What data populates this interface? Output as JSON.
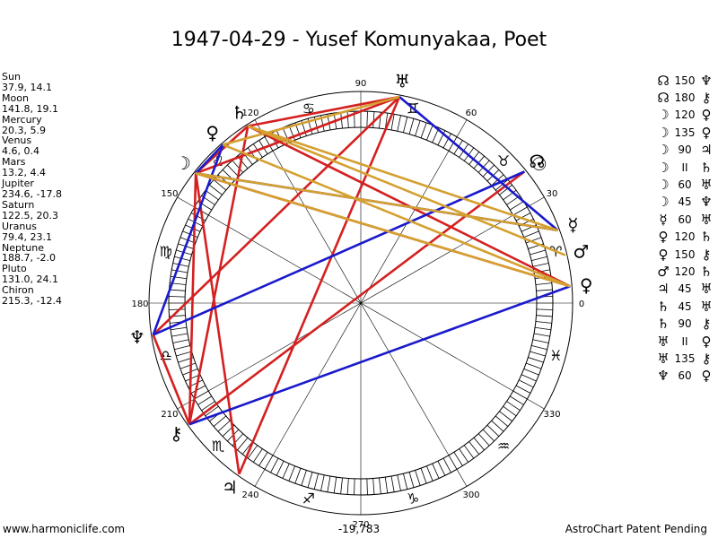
{
  "title": "1947-04-29 - Yusef Komunyakaa, Poet",
  "planets": [
    {
      "name": "Sun",
      "pos": "37.9, 14.1"
    },
    {
      "name": "Moon",
      "pos": "141.8, 19.1"
    },
    {
      "name": "Mercury",
      "pos": "20.3, 5.9"
    },
    {
      "name": "Venus",
      "pos": "4.6, 0.4"
    },
    {
      "name": "Mars",
      "pos": "13.2, 4.4"
    },
    {
      "name": "Jupiter",
      "pos": "234.6, -17.8"
    },
    {
      "name": "Saturn",
      "pos": "122.5, 20.3"
    },
    {
      "name": "Uranus",
      "pos": "79.4, 23.1"
    },
    {
      "name": "Neptune",
      "pos": "188.7, -2.0"
    },
    {
      "name": "Pluto",
      "pos": "131.0, 24.1"
    },
    {
      "name": "Chiron",
      "pos": "215.3, -12.4"
    }
  ],
  "aspects": [
    {
      "a": "☊",
      "deg": "150",
      "b": "♆"
    },
    {
      "a": "☊",
      "deg": "180",
      "b": "⚷"
    },
    {
      "a": "☽",
      "deg": "120",
      "b": "♀"
    },
    {
      "a": "☽",
      "deg": "135",
      "b": "♀"
    },
    {
      "a": "☽",
      "deg": "90",
      "b": "♃"
    },
    {
      "a": "☽",
      "deg": "II",
      "b": "♄"
    },
    {
      "a": "☽",
      "deg": "60",
      "b": "♅"
    },
    {
      "a": "☽",
      "deg": "45",
      "b": "♆"
    },
    {
      "a": "☿",
      "deg": "60",
      "b": "♅"
    },
    {
      "a": "♀",
      "deg": "120",
      "b": "♄"
    },
    {
      "a": "♀",
      "deg": "150",
      "b": "⚷"
    },
    {
      "a": "♂",
      "deg": "120",
      "b": "♄"
    },
    {
      "a": "♃",
      "deg": "45",
      "b": "♅"
    },
    {
      "a": "♄",
      "deg": "45",
      "b": "♅"
    },
    {
      "a": "♄",
      "deg": "90",
      "b": "⚷"
    },
    {
      "a": "♅",
      "deg": "II",
      "b": "♀"
    },
    {
      "a": "♅",
      "deg": "135",
      "b": "⚷"
    },
    {
      "a": "♆",
      "deg": "60",
      "b": "♀"
    }
  ],
  "chart": {
    "degree_labels": [
      "0",
      "30",
      "60",
      "90",
      "120",
      "150",
      "180",
      "210",
      "240",
      "270",
      "300",
      "330"
    ],
    "zodiac": [
      "♈",
      "♉",
      "♊",
      "♋",
      "♌",
      "♍",
      "♎",
      "♏",
      "♐",
      "♑",
      "♒",
      "♓"
    ],
    "bodies": [
      {
        "glyph": "☉",
        "lon": 37.9,
        "color": "#000000"
      },
      {
        "glyph": "☽",
        "lon": 141.8,
        "color": "#000000"
      },
      {
        "glyph": "☿",
        "lon": 20.3,
        "color": "#000000"
      },
      {
        "glyph": "♀",
        "lon": 4.6,
        "color": "#000000"
      },
      {
        "glyph": "♂",
        "lon": 13.2,
        "color": "#000000"
      },
      {
        "glyph": "♃",
        "lon": 234.6,
        "color": "#000000"
      },
      {
        "glyph": "♄",
        "lon": 122.5,
        "color": "#000000"
      },
      {
        "glyph": "♅",
        "lon": 79.4,
        "color": "#000000"
      },
      {
        "glyph": "♆",
        "lon": 188.7,
        "color": "#000000"
      },
      {
        "glyph": "♀",
        "lon": 131.0,
        "color": "#000000"
      },
      {
        "glyph": "⚷",
        "lon": 215.3,
        "color": "#000000"
      },
      {
        "glyph": "☊",
        "lon": 38.8,
        "color": "#000000"
      }
    ],
    "aspect_lines": [
      {
        "from": 141.8,
        "to": 79.4,
        "color": "#d42020"
      },
      {
        "from": 141.8,
        "to": 122.5,
        "color": "#d42020"
      },
      {
        "from": 141.8,
        "to": 234.6,
        "color": "#d42020"
      },
      {
        "from": 141.8,
        "to": 215.3,
        "color": "#d42020"
      },
      {
        "from": 141.8,
        "to": 4.6,
        "color": "#d42020"
      },
      {
        "from": 234.6,
        "to": 79.4,
        "color": "#d42020"
      },
      {
        "from": 122.5,
        "to": 4.6,
        "color": "#d42020"
      },
      {
        "from": 122.5,
        "to": 79.4,
        "color": "#d42020"
      },
      {
        "from": 215.3,
        "to": 38.8,
        "color": "#d42020"
      },
      {
        "from": 215.3,
        "to": 188.7,
        "color": "#d42020"
      },
      {
        "from": 188.7,
        "to": 79.4,
        "color": "#d42020"
      },
      {
        "from": 215.3,
        "to": 122.5,
        "color": "#d42020"
      },
      {
        "from": 141.8,
        "to": 20.3,
        "color": "#1a1acc"
      },
      {
        "from": 188.7,
        "to": 38.8,
        "color": "#1a1acc"
      },
      {
        "from": 215.3,
        "to": 4.6,
        "color": "#1a1acc"
      },
      {
        "from": 188.7,
        "to": 131.0,
        "color": "#1a1acc"
      },
      {
        "from": 79.4,
        "to": 20.3,
        "color": "#1a1acc"
      },
      {
        "from": 141.8,
        "to": 131.0,
        "color": "#1a1acc"
      },
      {
        "from": 122.5,
        "to": 20.3,
        "color": "#d4a030"
      },
      {
        "from": 122.5,
        "to": 13.2,
        "color": "#d4a030"
      },
      {
        "from": 79.4,
        "to": 131.0,
        "color": "#d4a030"
      },
      {
        "from": 141.8,
        "to": 20.3,
        "color": "#d4a030"
      },
      {
        "from": 141.8,
        "to": 4.6,
        "color": "#d4a030"
      },
      {
        "from": 131.0,
        "to": 4.6,
        "color": "#d4a030"
      }
    ]
  },
  "footer": {
    "left": "www.harmoniclife.com",
    "center": "-19,783",
    "right": "AstroChart Patent Pending"
  }
}
